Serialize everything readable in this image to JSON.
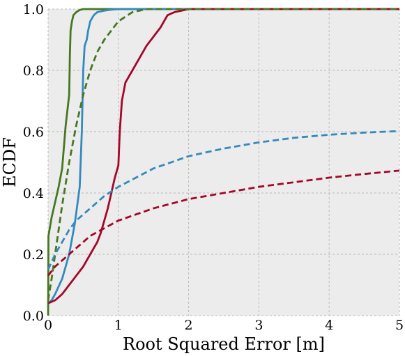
{
  "chart_data": {
    "type": "line",
    "xlabel": "Root Squared Error [m]",
    "ylabel": "ECDF",
    "xlim": [
      0,
      5
    ],
    "ylim": [
      0,
      1
    ],
    "xticks": [
      "0",
      "1",
      "2",
      "3",
      "4",
      "5"
    ],
    "yticks": [
      "0.0",
      "0.2",
      "0.4",
      "0.6",
      "0.8",
      "1.0"
    ],
    "grid": true,
    "background_color": "#ececec",
    "series": [
      {
        "color": "#467821",
        "style": "solid",
        "x": [
          0,
          0.005,
          0.05,
          0.1,
          0.15,
          0.2,
          0.25,
          0.3,
          0.31,
          0.32,
          0.34,
          0.36,
          0.4,
          0.45,
          0.5,
          0.55,
          1.0,
          5.0
        ],
        "y": [
          0,
          0.26,
          0.32,
          0.37,
          0.42,
          0.48,
          0.62,
          0.72,
          0.85,
          0.93,
          0.96,
          0.98,
          0.99,
          0.997,
          1.0,
          1.0,
          1.0,
          1.0
        ]
      },
      {
        "color": "#348abd",
        "style": "solid",
        "x": [
          0,
          0.05,
          0.1,
          0.2,
          0.3,
          0.38,
          0.45,
          0.48,
          0.5,
          0.52,
          0.55,
          0.57,
          0.6,
          0.65,
          0.7,
          0.8,
          0.9,
          1.0,
          1.5,
          5.0
        ],
        "y": [
          0.04,
          0.05,
          0.07,
          0.12,
          0.2,
          0.3,
          0.42,
          0.6,
          0.8,
          0.88,
          0.9,
          0.93,
          0.96,
          0.98,
          0.99,
          0.995,
          0.998,
          1.0,
          1.0,
          1.0
        ]
      },
      {
        "color": "#a60628",
        "style": "solid",
        "x": [
          0,
          0.1,
          0.2,
          0.3,
          0.4,
          0.5,
          0.6,
          0.7,
          0.75,
          0.8,
          0.85,
          0.9,
          0.95,
          1.0,
          1.02,
          1.05,
          1.1,
          1.2,
          1.3,
          1.4,
          1.5,
          1.6,
          1.65,
          1.7,
          1.8,
          1.9,
          2.0,
          5.0
        ],
        "y": [
          0.04,
          0.05,
          0.07,
          0.1,
          0.13,
          0.16,
          0.2,
          0.24,
          0.27,
          0.31,
          0.35,
          0.4,
          0.45,
          0.49,
          0.6,
          0.7,
          0.76,
          0.8,
          0.84,
          0.88,
          0.91,
          0.94,
          0.96,
          0.98,
          0.99,
          0.995,
          1.0,
          1.0
        ]
      },
      {
        "color": "#467821",
        "style": "dashed",
        "x": [
          0,
          0.05,
          0.1,
          0.15,
          0.2,
          0.3,
          0.4,
          0.5,
          0.6,
          0.7,
          0.8,
          0.9,
          1.0,
          1.1,
          1.2,
          1.3,
          1.4,
          1.5,
          5.0
        ],
        "y": [
          0.05,
          0.12,
          0.2,
          0.28,
          0.36,
          0.5,
          0.62,
          0.72,
          0.8,
          0.86,
          0.9,
          0.93,
          0.96,
          0.975,
          0.99,
          0.995,
          1.0,
          1.0,
          1.0
        ]
      },
      {
        "color": "#348abd",
        "style": "dashed",
        "x": [
          0,
          0.1,
          0.2,
          0.3,
          0.4,
          0.5,
          0.6,
          0.8,
          1.0,
          1.25,
          1.5,
          2.0,
          2.5,
          3.0,
          3.5,
          4.0,
          4.5,
          5.0
        ],
        "y": [
          0.15,
          0.2,
          0.24,
          0.28,
          0.31,
          0.33,
          0.35,
          0.39,
          0.42,
          0.45,
          0.48,
          0.52,
          0.545,
          0.565,
          0.58,
          0.59,
          0.597,
          0.602
        ]
      },
      {
        "color": "#a60628",
        "style": "dashed",
        "x": [
          0,
          0.1,
          0.2,
          0.3,
          0.4,
          0.5,
          0.6,
          0.8,
          1.0,
          1.5,
          2.0,
          2.5,
          3.0,
          3.5,
          4.0,
          4.5,
          5.0
        ],
        "y": [
          0.13,
          0.16,
          0.18,
          0.2,
          0.22,
          0.24,
          0.26,
          0.285,
          0.31,
          0.35,
          0.38,
          0.4,
          0.42,
          0.435,
          0.45,
          0.462,
          0.473
        ]
      }
    ]
  }
}
